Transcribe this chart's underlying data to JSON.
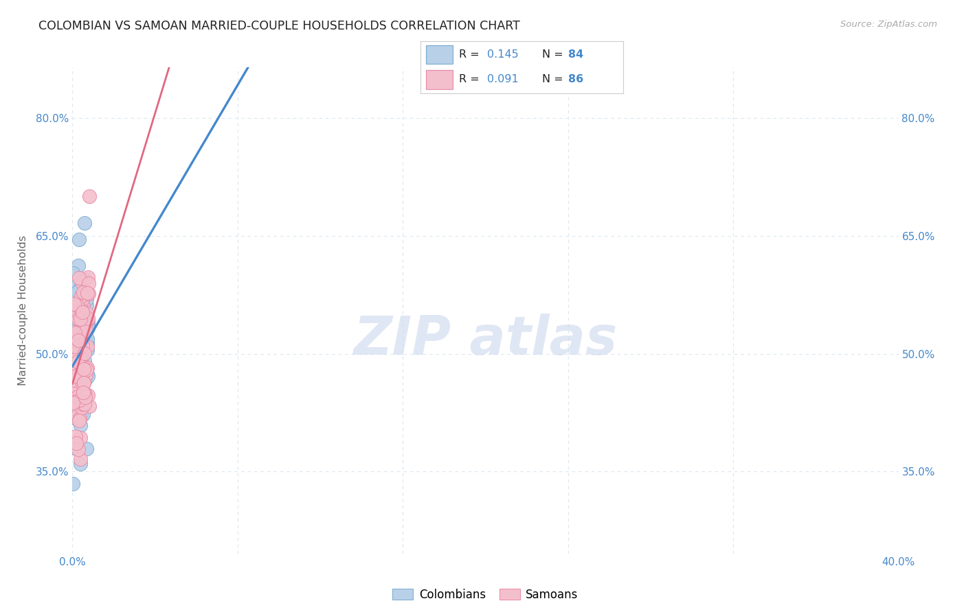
{
  "title": "COLOMBIAN VS SAMOAN MARRIED-COUPLE HOUSEHOLDS CORRELATION CHART",
  "source": "Source: ZipAtlas.com",
  "ylabel": "Married-couple Households",
  "xlim": [
    0.0,
    0.4
  ],
  "ylim": [
    0.245,
    0.865
  ],
  "yticks": [
    0.35,
    0.5,
    0.65,
    0.8
  ],
  "ytick_labels": [
    "35.0%",
    "50.0%",
    "65.0%",
    "80.0%"
  ],
  "xticks": [
    0.0,
    0.08,
    0.16,
    0.24,
    0.32,
    0.4
  ],
  "xtick_labels": [
    "0.0%",
    "",
    "",
    "",
    "",
    "40.0%"
  ],
  "legend_r1": "R = 0.145",
  "legend_n1": "N = 84",
  "legend_r2": "R = 0.091",
  "legend_n2": "N = 86",
  "legend_blue_label": "Colombians",
  "legend_pink_label": "Samoans",
  "blue_color": "#b8d0e8",
  "blue_edge": "#7aaad0",
  "pink_color": "#f4bfcc",
  "pink_edge": "#e888a4",
  "line_blue": "#4488cc",
  "line_pink": "#e06880",
  "background_color": "#ffffff",
  "grid_color": "#dde8f0",
  "title_color": "#222222",
  "axis_label_color": "#666666",
  "tick_color": "#4488cc",
  "rn_text_color": "#4488cc",
  "rn_label_color": "#222222",
  "watermark_color": "#ccd8ed",
  "seed": 42,
  "N_blue": 84,
  "N_pink": 86,
  "R_blue": 0.145,
  "R_pink": 0.091
}
